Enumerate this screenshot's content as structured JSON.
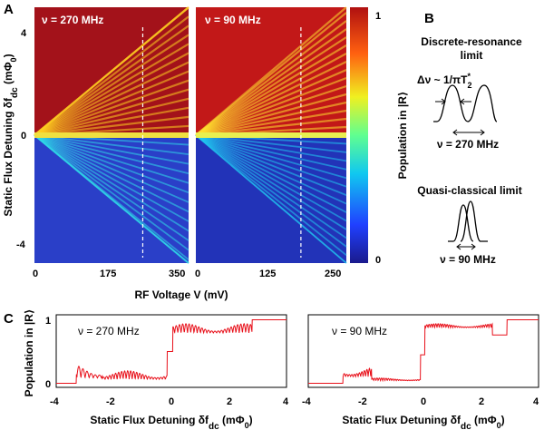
{
  "figure": {
    "panel_letters": [
      "A",
      "B",
      "C"
    ]
  },
  "chart_data": [
    {
      "type": "heatmap",
      "id": "A-left",
      "title": "ν = 270 MHz",
      "xlabel": "RF Voltage V (mV)",
      "ylabel": "Static Flux Detuning δf",
      "ylabel_sub": "dc",
      "ylabel_unit": "(mΦ",
      "ylabel_unit_sub": "0",
      "ylabel_close": ")",
      "xlim": [
        0,
        370
      ],
      "ylim": [
        -4.8,
        4.8
      ],
      "xticks": [
        0,
        175,
        350
      ],
      "yticks": [
        4,
        0,
        -4
      ],
      "marker_x": 260,
      "peak_spacing_per_mV": 0.0148,
      "colorscale": "jet"
    },
    {
      "type": "heatmap",
      "id": "A-right",
      "title": "ν = 90 MHz",
      "xlim": [
        0,
        265
      ],
      "ylim": [
        -4.8,
        4.8
      ],
      "xticks": [
        0,
        125,
        250
      ],
      "marker_x": 185,
      "peak_spacing_per_mV": 0.0185,
      "colorscale": "jet"
    },
    {
      "type": "heatmap",
      "id": "A-colorbar",
      "label": "Population in |R⟩",
      "range": [
        0,
        1
      ],
      "ticks": [
        1,
        0.5,
        0
      ]
    },
    {
      "type": "line",
      "id": "C-left",
      "title": "ν = 270 MHz",
      "xlabel": "Static Flux Detuning δf",
      "xlabel_sub": "dc",
      "xlabel_unit": "(mΦ",
      "xlabel_unit_sub": "0",
      "xlabel_close": ")",
      "ylabel": "Population in |R⟩",
      "xlim": [
        -4,
        4
      ],
      "ylim": [
        0,
        1
      ],
      "xticks": [
        -4,
        -2,
        0,
        2,
        4
      ],
      "yticks": [
        0,
        1
      ],
      "series": [
        {
          "name": "population",
          "color": "#e8101a",
          "segments": [
            {
              "from": -4,
              "to": -3.3,
              "level": 0.02,
              "amp": 0.0,
              "freq": 0
            },
            {
              "from": -3.3,
              "to": -2.4,
              "level": 0.1,
              "amp": 0.22,
              "freq": 22
            },
            {
              "from": -2.4,
              "to": -0.15,
              "level": 0.08,
              "amp": 0.13,
              "freq": 30
            },
            {
              "from": -0.15,
              "to": 0.05,
              "level": 0.5,
              "amp": 0.0,
              "freq": 0
            },
            {
              "from": 0.05,
              "to": 2.8,
              "level": 0.78,
              "amp": 0.14,
              "freq": 28
            },
            {
              "from": 2.8,
              "to": 4,
              "level": 0.98,
              "amp": 0.0,
              "freq": 0
            }
          ]
        }
      ]
    },
    {
      "type": "line",
      "id": "C-right",
      "title": "ν = 90 MHz",
      "xlabel": "Static Flux Detuning δf",
      "xlabel_sub": "dc",
      "xlabel_unit": "(mΦ",
      "xlabel_unit_sub": "0",
      "xlabel_close": ")",
      "xlim": [
        -4,
        4
      ],
      "ylim": [
        0,
        1
      ],
      "xticks": [
        -4,
        -2,
        0,
        2,
        4
      ],
      "yticks": [
        0,
        1
      ],
      "series": [
        {
          "name": "population",
          "color": "#e8101a",
          "segments": [
            {
              "from": -4,
              "to": -2.8,
              "level": 0.02,
              "amp": 0.0,
              "freq": 0
            },
            {
              "from": -2.8,
              "to": -1.8,
              "level": 0.12,
              "amp": 0.16,
              "freq": 36
            },
            {
              "from": -1.8,
              "to": -0.1,
              "level": 0.06,
              "amp": 0.04,
              "freq": 40
            },
            {
              "from": -0.1,
              "to": 0.05,
              "level": 0.45,
              "amp": 0.0,
              "freq": 0
            },
            {
              "from": 0.05,
              "to": 2.4,
              "level": 0.86,
              "amp": 0.06,
              "freq": 40
            },
            {
              "from": 2.4,
              "to": 2.9,
              "level": 0.75,
              "amp": 0.0,
              "freq": 0
            },
            {
              "from": 2.9,
              "to": 4,
              "level": 0.98,
              "amp": 0.0,
              "freq": 0
            }
          ]
        }
      ]
    }
  ],
  "panel_b": {
    "discrete_title_line1": "Discrete-resonance",
    "discrete_title_line2": "limit",
    "linewidth_label": "Δν ~ 1/πT",
    "linewidth_sub": "2",
    "linewidth_sup": "*",
    "discrete_freq": "ν = 270 MHz",
    "quasi_title": "Quasi-classical limit",
    "quasi_freq": "ν = 90 MHz"
  }
}
